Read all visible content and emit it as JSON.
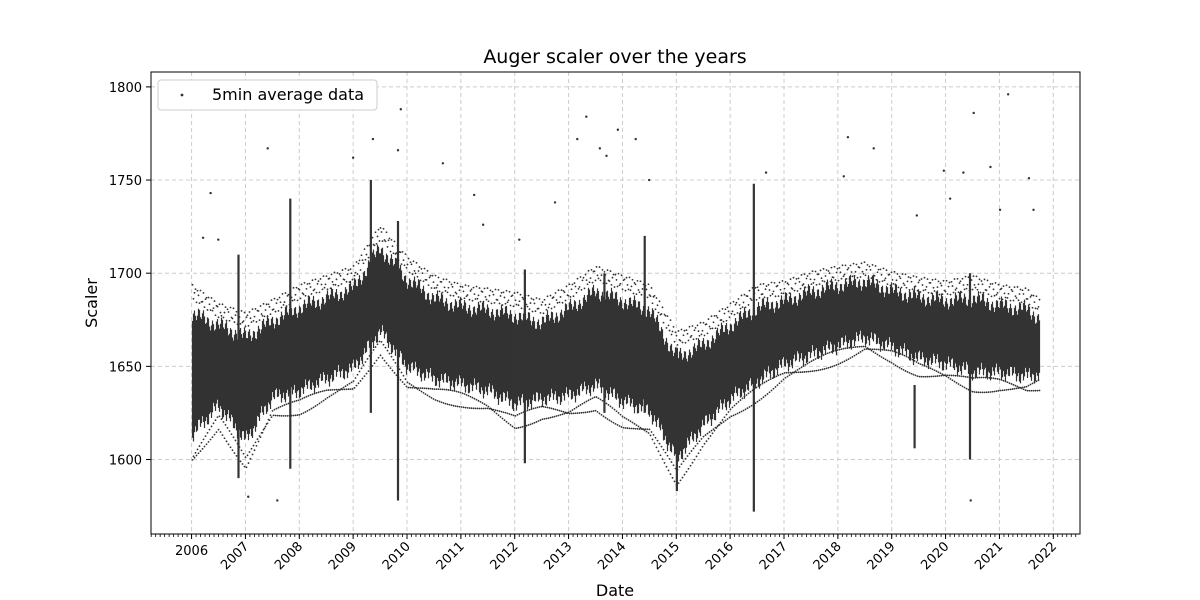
{
  "chart_data": {
    "type": "scatter",
    "title": "Auger scaler over the years",
    "xlabel": "Date",
    "ylabel": "Scaler",
    "xlim": [
      "2005-04-01",
      "2022-07-01"
    ],
    "ylim": [
      1560,
      1808
    ],
    "x_ticks": [
      "2006",
      "2007",
      "2008",
      "2009",
      "2010",
      "2011",
      "2012",
      "2013",
      "2014",
      "2015",
      "2016",
      "2017",
      "2018",
      "2019",
      "2020",
      "2021",
      "2022"
    ],
    "y_ticks": [
      1600,
      1650,
      1700,
      1750,
      1800
    ],
    "grid": true,
    "legend": {
      "position": "top-left",
      "entries": [
        "5min average data"
      ]
    },
    "marker_color": "#333333",
    "series": [
      {
        "name": "5min average data",
        "envelope": [
          {
            "date": "2006-01-01",
            "center": 1648,
            "low": 1600,
            "high": 1690
          },
          {
            "date": "2006-07-01",
            "center": 1652,
            "low": 1620,
            "high": 1680
          },
          {
            "date": "2007-01-01",
            "center": 1642,
            "low": 1598,
            "high": 1675
          },
          {
            "date": "2007-07-01",
            "center": 1655,
            "low": 1625,
            "high": 1682
          },
          {
            "date": "2008-01-01",
            "center": 1660,
            "low": 1628,
            "high": 1690
          },
          {
            "date": "2008-07-01",
            "center": 1665,
            "low": 1635,
            "high": 1695
          },
          {
            "date": "2009-01-01",
            "center": 1672,
            "low": 1640,
            "high": 1700
          },
          {
            "date": "2009-07-01",
            "center": 1692,
            "low": 1660,
            "high": 1722
          },
          {
            "date": "2010-01-01",
            "center": 1675,
            "low": 1640,
            "high": 1705
          },
          {
            "date": "2010-07-01",
            "center": 1665,
            "low": 1635,
            "high": 1695
          },
          {
            "date": "2011-01-01",
            "center": 1662,
            "low": 1632,
            "high": 1690
          },
          {
            "date": "2011-07-01",
            "center": 1660,
            "low": 1628,
            "high": 1688
          },
          {
            "date": "2012-01-01",
            "center": 1655,
            "low": 1620,
            "high": 1686
          },
          {
            "date": "2012-07-01",
            "center": 1652,
            "low": 1625,
            "high": 1682
          },
          {
            "date": "2013-01-01",
            "center": 1658,
            "low": 1625,
            "high": 1690
          },
          {
            "date": "2013-07-01",
            "center": 1665,
            "low": 1630,
            "high": 1700
          },
          {
            "date": "2014-01-01",
            "center": 1660,
            "low": 1620,
            "high": 1695
          },
          {
            "date": "2014-07-01",
            "center": 1655,
            "low": 1615,
            "high": 1690
          },
          {
            "date": "2015-01-01",
            "center": 1628,
            "low": 1590,
            "high": 1665
          },
          {
            "date": "2015-07-01",
            "center": 1640,
            "low": 1610,
            "high": 1670
          },
          {
            "date": "2016-01-01",
            "center": 1652,
            "low": 1625,
            "high": 1680
          },
          {
            "date": "2016-07-01",
            "center": 1660,
            "low": 1635,
            "high": 1690
          },
          {
            "date": "2017-01-01",
            "center": 1667,
            "low": 1645,
            "high": 1692
          },
          {
            "date": "2017-07-01",
            "center": 1672,
            "low": 1650,
            "high": 1697
          },
          {
            "date": "2018-01-01",
            "center": 1677,
            "low": 1655,
            "high": 1700
          },
          {
            "date": "2018-07-01",
            "center": 1680,
            "low": 1660,
            "high": 1702
          },
          {
            "date": "2019-01-01",
            "center": 1674,
            "low": 1655,
            "high": 1697
          },
          {
            "date": "2019-07-01",
            "center": 1670,
            "low": 1648,
            "high": 1694
          },
          {
            "date": "2020-01-01",
            "center": 1668,
            "low": 1645,
            "high": 1692
          },
          {
            "date": "2020-07-01",
            "center": 1665,
            "low": 1640,
            "high": 1695
          },
          {
            "date": "2021-01-01",
            "center": 1664,
            "low": 1640,
            "high": 1690
          },
          {
            "date": "2021-07-01",
            "center": 1662,
            "low": 1638,
            "high": 1688
          },
          {
            "date": "2021-10-01",
            "center": 1660,
            "low": 1640,
            "high": 1682
          }
        ],
        "spikes": [
          {
            "date": "2006-11-15",
            "low": 1590,
            "high": 1710
          },
          {
            "date": "2007-11-01",
            "low": 1595,
            "high": 1740
          },
          {
            "date": "2009-05-01",
            "low": 1625,
            "high": 1750
          },
          {
            "date": "2009-11-01",
            "low": 1578,
            "high": 1728
          },
          {
            "date": "2012-03-10",
            "low": 1598,
            "high": 1702
          },
          {
            "date": "2013-09-01",
            "low": 1625,
            "high": 1700
          },
          {
            "date": "2014-06-01",
            "low": 1625,
            "high": 1720
          },
          {
            "date": "2015-01-05",
            "low": 1583,
            "high": 1660
          },
          {
            "date": "2016-06-10",
            "low": 1572,
            "high": 1748
          },
          {
            "date": "2019-06-05",
            "low": 1606,
            "high": 1640
          },
          {
            "date": "2020-06-15",
            "low": 1600,
            "high": 1700
          }
        ],
        "outliers": [
          {
            "date": "2006-03-20",
            "y": 1719
          },
          {
            "date": "2006-05-10",
            "y": 1743
          },
          {
            "date": "2006-07-01",
            "y": 1718
          },
          {
            "date": "2007-06-01",
            "y": 1767
          },
          {
            "date": "2007-08-05",
            "y": 1578
          },
          {
            "date": "2007-01-20",
            "y": 1580
          },
          {
            "date": "2009-01-01",
            "y": 1762
          },
          {
            "date": "2009-05-15",
            "y": 1772
          },
          {
            "date": "2009-11-20",
            "y": 1788
          },
          {
            "date": "2009-11-01",
            "y": 1766
          },
          {
            "date": "2010-09-01",
            "y": 1759
          },
          {
            "date": "2011-04-01",
            "y": 1742
          },
          {
            "date": "2011-06-01",
            "y": 1726
          },
          {
            "date": "2012-02-01",
            "y": 1718
          },
          {
            "date": "2012-10-01",
            "y": 1738
          },
          {
            "date": "2013-03-01",
            "y": 1772
          },
          {
            "date": "2013-05-01",
            "y": 1784
          },
          {
            "date": "2013-08-01",
            "y": 1767
          },
          {
            "date": "2013-09-15",
            "y": 1763
          },
          {
            "date": "2013-12-01",
            "y": 1777
          },
          {
            "date": "2014-04-01",
            "y": 1772
          },
          {
            "date": "2014-07-01",
            "y": 1750
          },
          {
            "date": "2016-09-01",
            "y": 1754
          },
          {
            "date": "2018-03-10",
            "y": 1773
          },
          {
            "date": "2018-02-10",
            "y": 1752
          },
          {
            "date": "2018-09-01",
            "y": 1767
          },
          {
            "date": "2019-06-20",
            "y": 1731
          },
          {
            "date": "2019-12-20",
            "y": 1755
          },
          {
            "date": "2020-02-01",
            "y": 1740
          },
          {
            "date": "2020-05-01",
            "y": 1754
          },
          {
            "date": "2020-07-10",
            "y": 1786
          },
          {
            "date": "2020-06-20",
            "y": 1578
          },
          {
            "date": "2020-11-01",
            "y": 1757
          },
          {
            "date": "2021-01-05",
            "y": 1734
          },
          {
            "date": "2021-03-01",
            "y": 1796
          },
          {
            "date": "2021-07-20",
            "y": 1751
          },
          {
            "date": "2021-08-20",
            "y": 1734
          }
        ]
      }
    ]
  }
}
